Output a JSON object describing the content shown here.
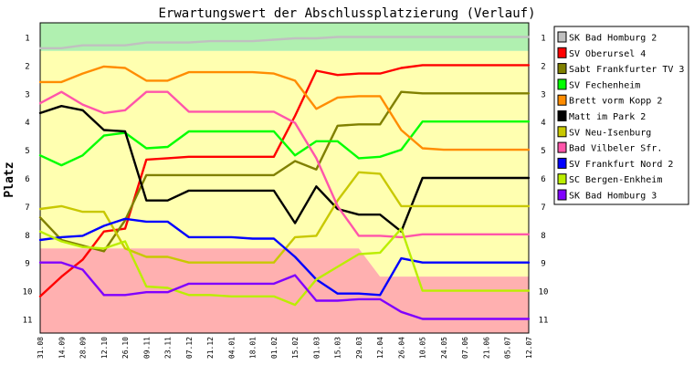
{
  "chart_data": {
    "type": "line",
    "title": "Erwartungswert der Abschlussplatzierung (Verlauf)",
    "ylabel": "Platz",
    "ylim": [
      0.5,
      11.5
    ],
    "y_inverted": true,
    "yticks": [
      1,
      2,
      3,
      4,
      5,
      6,
      7,
      8,
      9,
      10,
      11
    ],
    "grid": false,
    "legend_position": "right",
    "x": [
      "31.08",
      "14.09",
      "28.09",
      "12.10",
      "26.10",
      "09.11",
      "23.11",
      "07.12",
      "21.12",
      "04.01",
      "18.01",
      "01.02",
      "15.02",
      "01.03",
      "15.03",
      "29.03",
      "12.04",
      "26.04",
      "10.05",
      "24.05",
      "07.06",
      "21.06",
      "05.07",
      "12.07"
    ],
    "zones": [
      {
        "color": "#b0f0b0",
        "from": [
          0.5,
          0.5,
          0.5,
          0.5,
          0.5,
          0.5,
          0.5,
          0.5,
          0.5,
          0.5,
          0.5,
          0.5,
          0.5,
          0.5,
          0.5,
          0.5,
          0.5,
          0.5,
          0.5,
          0.5,
          0.5,
          0.5,
          0.5,
          0.5
        ],
        "to": [
          1.5,
          1.5,
          1.5,
          1.5,
          1.5,
          1.5,
          1.5,
          1.5,
          1.5,
          1.5,
          1.5,
          1.5,
          1.5,
          1.5,
          1.5,
          1.5,
          1.5,
          1.5,
          1.5,
          1.5,
          1.5,
          1.5,
          1.5,
          1.5
        ]
      },
      {
        "color": "#ffffb0",
        "from": [
          1.5,
          1.5,
          1.5,
          1.5,
          1.5,
          1.5,
          1.5,
          1.5,
          1.5,
          1.5,
          1.5,
          1.5,
          1.5,
          1.5,
          1.5,
          1.5,
          1.5,
          1.5,
          1.5,
          1.5,
          1.5,
          1.5,
          1.5,
          1.5
        ],
        "to": [
          8.5,
          8.5,
          8.5,
          8.5,
          8.5,
          8.5,
          8.5,
          8.5,
          8.5,
          8.5,
          8.5,
          8.5,
          8.5,
          8.5,
          8.5,
          8.5,
          9.5,
          9.5,
          9.5,
          9.5,
          9.5,
          9.5,
          9.5,
          9.5
        ]
      },
      {
        "color": "#ffb0b0",
        "from": [
          8.5,
          8.5,
          8.5,
          8.5,
          8.5,
          8.5,
          8.5,
          8.5,
          8.5,
          8.5,
          8.5,
          8.5,
          8.5,
          8.5,
          8.5,
          8.5,
          9.5,
          9.5,
          9.5,
          9.5,
          9.5,
          9.5,
          9.5,
          9.5
        ],
        "to": [
          11.5,
          11.5,
          11.5,
          11.5,
          11.5,
          11.5,
          11.5,
          11.5,
          11.5,
          11.5,
          11.5,
          11.5,
          11.5,
          11.5,
          11.5,
          11.5,
          11.5,
          11.5,
          11.5,
          11.5,
          11.5,
          11.5,
          11.5,
          11.5
        ]
      }
    ],
    "series": [
      {
        "name": "SK Bad Homburg 2",
        "color": "#c0c0c0",
        "values": [
          1.4,
          1.4,
          1.3,
          1.3,
          1.3,
          1.2,
          1.2,
          1.2,
          1.15,
          1.15,
          1.15,
          1.1,
          1.05,
          1.05,
          1.0,
          1.0,
          1.0,
          1.0,
          1.0,
          1.0,
          1.0,
          1.0,
          1.0,
          1.0
        ]
      },
      {
        "name": "SV Oberursel 4",
        "color": "#ff0000",
        "values": [
          10.2,
          9.5,
          8.9,
          7.9,
          7.8,
          5.35,
          5.3,
          5.25,
          5.25,
          5.25,
          5.25,
          5.25,
          3.8,
          2.2,
          2.35,
          2.3,
          2.3,
          2.1,
          2.0,
          2.0,
          2.0,
          2.0,
          2.0,
          2.0
        ]
      },
      {
        "name": "Sabt Frankfurter TV 3",
        "color": "#808000",
        "values": [
          7.4,
          8.2,
          8.4,
          8.6,
          7.5,
          5.9,
          5.9,
          5.9,
          5.9,
          5.9,
          5.9,
          5.9,
          5.4,
          5.7,
          4.15,
          4.1,
          4.1,
          2.95,
          3.0,
          3.0,
          3.0,
          3.0,
          3.0,
          3.0
        ]
      },
      {
        "name": "SV Fechenheim",
        "color": "#00ff00",
        "values": [
          5.2,
          5.55,
          5.2,
          4.5,
          4.4,
          4.95,
          4.9,
          4.35,
          4.35,
          4.35,
          4.35,
          4.35,
          5.2,
          4.7,
          4.7,
          5.3,
          5.25,
          5.0,
          4.0,
          4.0,
          4.0,
          4.0,
          4.0,
          4.0
        ]
      },
      {
        "name": "Brett vorm Kopp 2",
        "color": "#ff8c00",
        "values": [
          2.6,
          2.6,
          2.3,
          2.05,
          2.1,
          2.55,
          2.55,
          2.25,
          2.25,
          2.25,
          2.25,
          2.3,
          2.55,
          3.55,
          3.15,
          3.1,
          3.1,
          4.3,
          4.95,
          5.0,
          5.0,
          5.0,
          5.0,
          5.0
        ]
      },
      {
        "name": "Matt im Park 2",
        "color": "#000000",
        "values": [
          3.7,
          3.45,
          3.6,
          4.3,
          4.35,
          6.8,
          6.8,
          6.45,
          6.45,
          6.45,
          6.45,
          6.45,
          7.6,
          6.3,
          7.1,
          7.3,
          7.3,
          7.9,
          6.0,
          6.0,
          6.0,
          6.0,
          6.0,
          6.0
        ]
      },
      {
        "name": "SV Neu-Isenburg",
        "color": "#c8c800",
        "values": [
          7.1,
          7.0,
          7.2,
          7.2,
          8.5,
          8.8,
          8.8,
          9.0,
          9.0,
          9.0,
          9.0,
          9.0,
          8.1,
          8.05,
          6.8,
          5.8,
          5.85,
          7.0,
          7.0,
          7.0,
          7.0,
          7.0,
          7.0,
          7.0
        ]
      },
      {
        "name": "Bad Vilbeler Sfr.",
        "color": "#ff55aa",
        "values": [
          3.35,
          2.95,
          3.4,
          3.7,
          3.6,
          2.95,
          2.95,
          3.65,
          3.65,
          3.65,
          3.65,
          3.65,
          4.05,
          5.3,
          7.0,
          8.05,
          8.05,
          8.1,
          8.0,
          8.0,
          8.0,
          8.0,
          8.0,
          8.0
        ]
      },
      {
        "name": "SV Frankfurt Nord 2",
        "color": "#0000ff",
        "values": [
          8.2,
          8.1,
          8.05,
          7.7,
          7.45,
          7.55,
          7.55,
          8.1,
          8.1,
          8.1,
          8.15,
          8.15,
          8.8,
          9.6,
          10.1,
          10.1,
          10.15,
          8.85,
          9.0,
          9.0,
          9.0,
          9.0,
          9.0,
          9.0
        ]
      },
      {
        "name": "SC Bergen-Enkheim",
        "color": "#bbee00",
        "values": [
          7.9,
          8.25,
          8.45,
          8.5,
          8.25,
          9.85,
          9.9,
          10.15,
          10.15,
          10.2,
          10.2,
          10.2,
          10.5,
          9.6,
          9.15,
          8.7,
          8.65,
          7.8,
          10.0,
          10.0,
          10.0,
          10.0,
          10.0,
          10.0
        ]
      },
      {
        "name": "SK Bad Homburg 3",
        "color": "#8000ff",
        "values": [
          9.0,
          9.0,
          9.25,
          10.15,
          10.15,
          10.05,
          10.05,
          9.75,
          9.75,
          9.75,
          9.75,
          9.75,
          9.45,
          10.35,
          10.35,
          10.3,
          10.3,
          10.75,
          11.0,
          11.0,
          11.0,
          11.0,
          11.0,
          11.0
        ]
      }
    ]
  }
}
